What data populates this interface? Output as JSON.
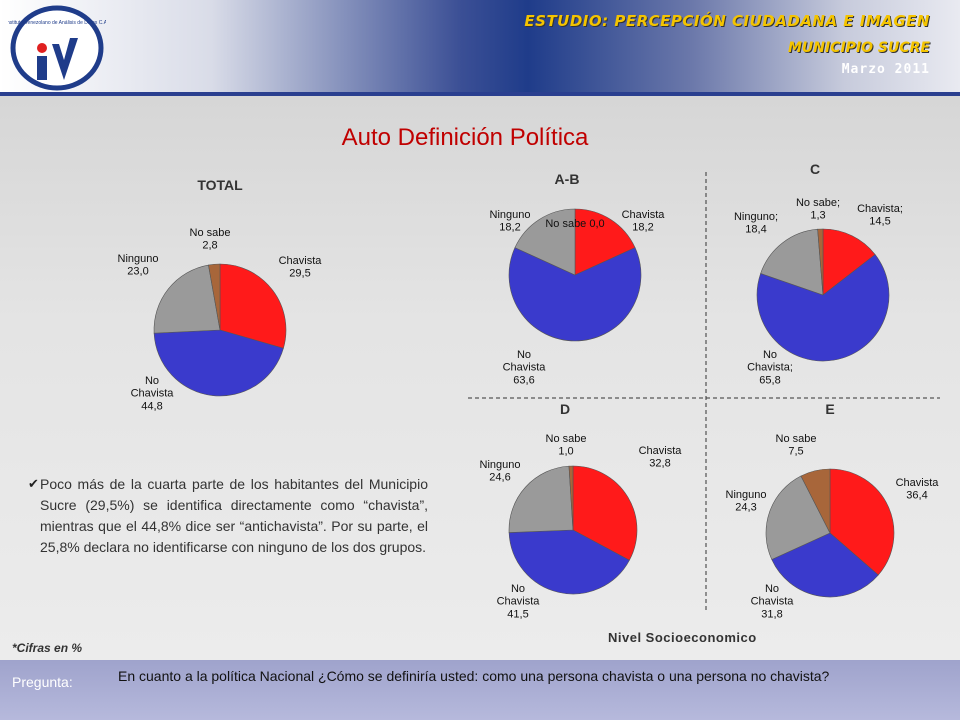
{
  "header": {
    "study": "ESTUDIO: PERCEPCIÓN CIUDADANA E IMAGEN",
    "municipality": "MUNICIPIO SUCRE",
    "date": "Marzo 2011",
    "logo_text": "Instituto Venezolano de Análisis de Datos C.A."
  },
  "colors": {
    "chavista": "#ff1a1a",
    "no_chavista": "#3a3acc",
    "ninguno": "#9a9a9a",
    "no_sabe": "#a8663a",
    "title": "#c00000"
  },
  "title": "Auto Definición Política",
  "paragraph": "Poco más de la cuarta parte de los habitantes del Municipio Sucre (29,5%) se identifica directamente como “chavista”, mientras que el 44,8% dice ser “antichavista”. Por su parte, el 25,8% declara no identificarse con ninguno de los dos grupos.",
  "note": "*Cifras en %",
  "x_axis_caption": "Nivel Socioeconomico",
  "question": {
    "label": "Pregunta:",
    "text": "En cuanto a la política Nacional ¿Cómo se definiría usted: como una persona chavista o una persona no chavista?"
  },
  "chart_data": [
    {
      "type": "pie",
      "title": "TOTAL",
      "categories": [
        "Chavista",
        "No Chavista",
        "Ninguno",
        "No sabe"
      ],
      "values": [
        29.5,
        44.8,
        23.0,
        2.8
      ],
      "labels": [
        "Chavista|29,5",
        "No|Chavista|44,8",
        "Ninguno|23,0",
        "No sabe|2,8"
      ]
    },
    {
      "type": "pie",
      "title": "A-B",
      "categories": [
        "Chavista",
        "No Chavista",
        "Ninguno",
        "No sabe"
      ],
      "values": [
        18.2,
        63.6,
        18.2,
        0.0
      ],
      "labels": [
        "Chavista|18,2",
        "No|Chavista|63,6",
        "Ninguno|18,2",
        "No sabe 0,0"
      ]
    },
    {
      "type": "pie",
      "title": "C",
      "categories": [
        "Chavista",
        "No Chavista",
        "Ninguno",
        "No sabe"
      ],
      "values": [
        14.5,
        65.8,
        18.4,
        1.3
      ],
      "labels": [
        "Chavista;|14,5",
        "No|Chavista;|65,8",
        "Ninguno;|18,4",
        "No sabe;|1,3"
      ]
    },
    {
      "type": "pie",
      "title": "D",
      "categories": [
        "Chavista",
        "No Chavista",
        "Ninguno",
        "No sabe"
      ],
      "values": [
        32.8,
        41.5,
        24.6,
        1.0
      ],
      "labels": [
        "Chavista|32,8",
        "No|Chavista|41,5",
        "Ninguno|24,6",
        "No sabe|1,0"
      ]
    },
    {
      "type": "pie",
      "title": "E",
      "categories": [
        "Chavista",
        "No Chavista",
        "Ninguno",
        "No sabe"
      ],
      "values": [
        36.4,
        31.8,
        24.3,
        7.5
      ],
      "labels": [
        "Chavista|36,4",
        "No|Chavista|31,8",
        "Ninguno|24,3",
        "No sabe|7,5"
      ]
    }
  ]
}
